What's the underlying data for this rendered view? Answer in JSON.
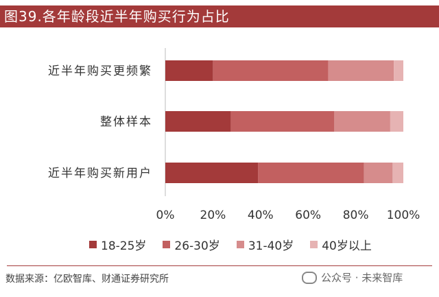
{
  "header": {
    "title": "图39.各年龄段近半年购买行为占比"
  },
  "chart_data": {
    "type": "bar",
    "orientation": "horizontal",
    "stacked": true,
    "categories": [
      "近半年购买更频繁",
      "整体样本",
      "近半年购买新用户"
    ],
    "series": [
      {
        "name": "18-25岁",
        "values": [
          20,
          27.5,
          39
        ],
        "color": "#a33a3a"
      },
      {
        "name": "26-30岁",
        "values": [
          48.5,
          43.5,
          44.5
        ],
        "color": "#c26060"
      },
      {
        "name": "31-40岁",
        "values": [
          27.5,
          23.5,
          12
        ],
        "color": "#d68c8c"
      },
      {
        "name": "40岁以上",
        "values": [
          4,
          5.5,
          4.5
        ],
        "color": "#e6b3b3"
      }
    ],
    "xlim": [
      0,
      100
    ],
    "xticks": [
      "0%",
      "20%",
      "40%",
      "60%",
      "80%",
      "100%"
    ],
    "legend": "bottom",
    "grid": false
  },
  "footer": {
    "source": "数据来源：亿欧智库、财通证券研究所",
    "watermark": "公众号 · 未来智库"
  }
}
